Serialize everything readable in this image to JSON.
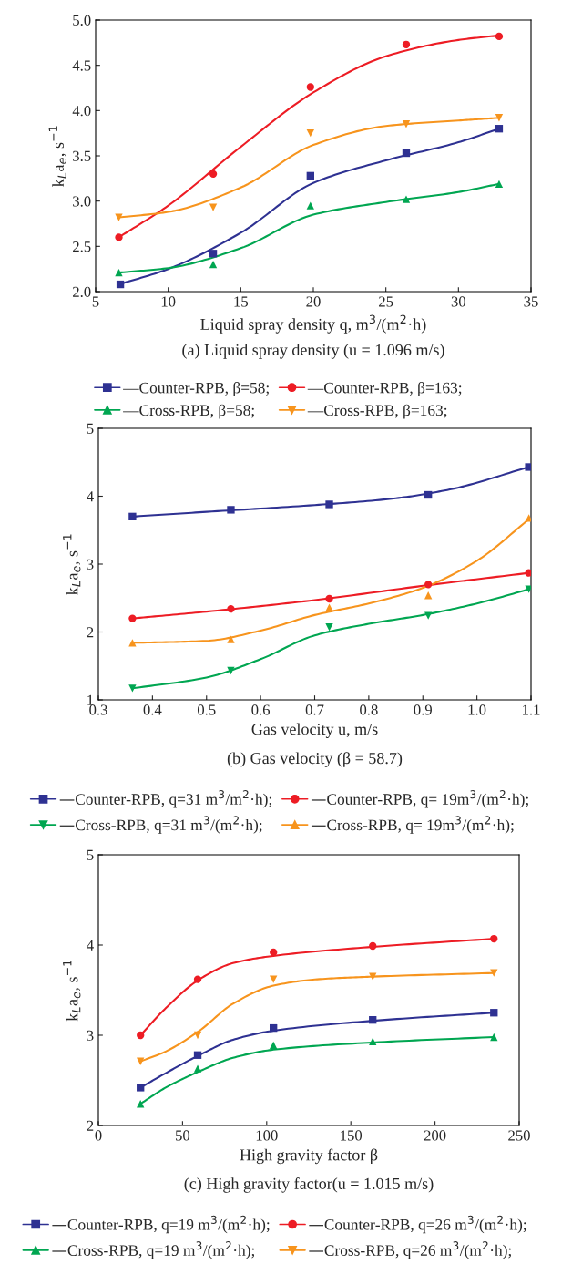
{
  "chart_data": [
    {
      "type": "scatter",
      "title": "(a) Liquid spray density (u = 1.096 m/s)",
      "xlabel": "Liquid spray density q, m$^{3}$/(m$^{2}$·h)",
      "ylabel": "k$_{L}$a$_{e}$, s$^{−1}$",
      "xlim": [
        5,
        35
      ],
      "xticks": [
        5,
        10,
        15,
        20,
        25,
        30,
        35
      ],
      "ylim": [
        2.0,
        5.0
      ],
      "yticks": [
        {
          "value": 2,
          "label": "2.0"
        },
        2.5,
        {
          "value": 3,
          "label": "3.0"
        },
        3.5,
        {
          "value": 4,
          "label": "4.0"
        },
        4.5,
        {
          "value": 5,
          "label": "5.0"
        }
      ],
      "grid": false,
      "legend": "bottom",
      "series": [
        {
          "name": "—Counter-RPB, β=58;",
          "color": "#2e3192",
          "marker": "square",
          "x": [
            6.7,
            13.1,
            19.8,
            26.4,
            32.8
          ],
          "values": [
            2.08,
            2.42,
            3.28,
            3.53,
            3.8
          ]
        },
        {
          "name": "—Counter-RPB, β=163;",
          "color": "#ed1c24",
          "marker": "circle",
          "x": [
            6.6,
            13.1,
            19.8,
            26.4,
            32.8
          ],
          "values": [
            2.6,
            3.3,
            4.26,
            4.73,
            4.82
          ]
        },
        {
          "name": "—Cross-RPB, β=58;",
          "color": "#00a651",
          "marker": "triangle",
          "x": [
            6.6,
            13.1,
            19.8,
            26.4,
            32.8
          ],
          "values": [
            2.21,
            2.3,
            2.95,
            3.02,
            3.19
          ]
        },
        {
          "name": "—Cross-RPB, β=163;",
          "color": "#f7941d",
          "marker": "triangle_down",
          "x": [
            6.6,
            13.1,
            19.8,
            26.4,
            32.8
          ],
          "values": [
            2.82,
            2.93,
            3.75,
            3.85,
            3.92
          ]
        },
        {
          "type": "line",
          "color": "#2e3192",
          "x": [
            6.6,
            10,
            15,
            20,
            25,
            30,
            32.8
          ],
          "values": [
            2.08,
            2.25,
            2.65,
            3.2,
            3.45,
            3.65,
            3.8
          ]
        },
        {
          "type": "line",
          "color": "#ed1c24",
          "x": [
            6.6,
            10,
            15,
            20,
            25,
            30,
            32.8
          ],
          "values": [
            2.6,
            2.95,
            3.6,
            4.2,
            4.6,
            4.78,
            4.83
          ]
        },
        {
          "type": "line",
          "color": "#00a651",
          "x": [
            6.6,
            10,
            15,
            20,
            25,
            30,
            32.8
          ],
          "values": [
            2.21,
            2.26,
            2.48,
            2.85,
            2.99,
            3.1,
            3.19
          ]
        },
        {
          "type": "line",
          "color": "#f7941d",
          "x": [
            6.6,
            10,
            15,
            20,
            25,
            30,
            32.8
          ],
          "values": [
            2.82,
            2.88,
            3.15,
            3.62,
            3.83,
            3.89,
            3.92
          ]
        }
      ]
    },
    {
      "type": "scatter",
      "title": "(b) Gas velocity (β = 58.7)",
      "xlabel": "Gas velocity u, m/s",
      "ylabel": "k$_{L}$a$_{e}$, s$^{−1}$",
      "xlim": [
        0.3,
        1.1
      ],
      "xticks": [
        0.3,
        0.4,
        0.5,
        0.6,
        0.7,
        0.8,
        0.9,
        {
          "value": 1,
          "label": "1.0"
        },
        1.1
      ],
      "ylim": [
        1,
        5
      ],
      "yticks": [
        1,
        2,
        3,
        4,
        5
      ],
      "grid": false,
      "legend": "bottom",
      "series": [
        {
          "name": "—Counter-RPB, q=31 m$^{3}$/m$^{2}$·h);",
          "color": "#2e3192",
          "marker": "square",
          "x": [
            0.363,
            0.545,
            0.727,
            0.91,
            1.096
          ],
          "values": [
            3.7,
            3.8,
            3.88,
            4.02,
            4.43
          ]
        },
        {
          "name": "—Counter-RPB, q= 19m$^{3}$/(m$^{2}$·h);",
          "color": "#ed1c24",
          "marker": "circle",
          "x": [
            0.363,
            0.545,
            0.727,
            0.91,
            1.096
          ],
          "values": [
            2.2,
            2.34,
            2.49,
            2.7,
            2.87
          ]
        },
        {
          "name": "—Cross-RPB, q=31 m$^{3}$/(m$^{2}$·h);",
          "color": "#00a651",
          "marker": "triangle_down",
          "x": [
            0.363,
            0.545,
            0.727,
            0.91,
            1.096
          ],
          "values": [
            1.17,
            1.43,
            2.07,
            2.24,
            2.63
          ]
        },
        {
          "name": "—Cross-RPB, q= 19m$^{3}$/(m$^{2}$·h);",
          "color": "#f7941d",
          "marker": "triangle",
          "x": [
            0.363,
            0.545,
            0.727,
            0.91,
            1.096
          ],
          "values": [
            1.84,
            1.89,
            2.36,
            2.54,
            3.68
          ]
        },
        {
          "type": "line",
          "color": "#2e3192",
          "x": [
            0.363,
            0.5,
            0.7,
            0.85,
            0.95,
            1.096
          ],
          "values": [
            3.7,
            3.77,
            3.87,
            3.97,
            4.1,
            4.43
          ]
        },
        {
          "type": "line",
          "color": "#ed1c24",
          "x": [
            0.363,
            0.5,
            0.7,
            0.9,
            1.096
          ],
          "values": [
            2.2,
            2.3,
            2.47,
            2.68,
            2.87
          ]
        },
        {
          "type": "line",
          "color": "#00a651",
          "x": [
            0.363,
            0.5,
            0.6,
            0.7,
            0.8,
            0.9,
            1.0,
            1.096
          ],
          "values": [
            1.17,
            1.33,
            1.6,
            1.95,
            2.12,
            2.25,
            2.42,
            2.63
          ]
        },
        {
          "type": "line",
          "color": "#f7941d",
          "x": [
            0.363,
            0.5,
            0.6,
            0.7,
            0.8,
            0.9,
            1.0,
            1.096
          ],
          "values": [
            1.84,
            1.87,
            2.02,
            2.25,
            2.42,
            2.65,
            3.05,
            3.66
          ]
        }
      ]
    },
    {
      "type": "scatter",
      "title": "(c) High gravity factor(u = 1.015 m/s)",
      "xlabel": "High gravity factor β",
      "ylabel": "k$_{L}$a$_{e}$, s$^{−1}$",
      "xlim": [
        0,
        250
      ],
      "xticks": [
        0,
        50,
        100,
        150,
        200,
        250
      ],
      "ylim": [
        2,
        5
      ],
      "yticks": [
        2,
        3,
        4,
        5
      ],
      "grid": false,
      "legend": "bottom",
      "series": [
        {
          "name": "—Counter-RPB, q=19 m$^{3}$/(m$^{2}$·h);",
          "color": "#2e3192",
          "marker": "square",
          "x": [
            25,
            59,
            104,
            163,
            235
          ],
          "values": [
            2.42,
            2.78,
            3.08,
            3.17,
            3.25
          ]
        },
        {
          "name": "—Counter-RPB, q=26 m$^{3}$/(m$^{2}$·h);",
          "color": "#ed1c24",
          "marker": "circle",
          "x": [
            25,
            59,
            104,
            163,
            235
          ],
          "values": [
            3.0,
            3.62,
            3.92,
            3.99,
            4.07
          ]
        },
        {
          "name": "—Cross-RPB, q=19 m$^{3}$/(m$^{2}$·h);",
          "color": "#00a651",
          "marker": "triangle",
          "x": [
            25,
            59,
            104,
            163,
            235
          ],
          "values": [
            2.24,
            2.63,
            2.89,
            2.93,
            2.98
          ]
        },
        {
          "name": "—Cross-RPB, q=26 m$^{3}$/(m$^{2}$·h);",
          "color": "#f7941d",
          "marker": "triangle_down",
          "x": [
            25,
            59,
            104,
            163,
            235
          ],
          "values": [
            2.71,
            3.0,
            3.62,
            3.65,
            3.69
          ]
        },
        {
          "type": "line",
          "color": "#2e3192",
          "x": [
            25,
            40,
            60,
            80,
            104,
            163,
            235
          ],
          "values": [
            2.42,
            2.58,
            2.78,
            2.95,
            3.05,
            3.16,
            3.25
          ]
        },
        {
          "type": "line",
          "color": "#ed1c24",
          "x": [
            25,
            40,
            60,
            80,
            104,
            163,
            235
          ],
          "values": [
            3.0,
            3.3,
            3.62,
            3.8,
            3.88,
            3.98,
            4.07
          ]
        },
        {
          "type": "line",
          "color": "#00a651",
          "x": [
            25,
            40,
            60,
            80,
            104,
            163,
            235
          ],
          "values": [
            2.24,
            2.42,
            2.6,
            2.75,
            2.84,
            2.92,
            2.98
          ]
        },
        {
          "type": "line",
          "color": "#f7941d",
          "x": [
            25,
            40,
            60,
            80,
            104,
            130,
            163,
            235
          ],
          "values": [
            2.71,
            2.82,
            3.05,
            3.35,
            3.55,
            3.62,
            3.65,
            3.69
          ]
        }
      ]
    }
  ]
}
